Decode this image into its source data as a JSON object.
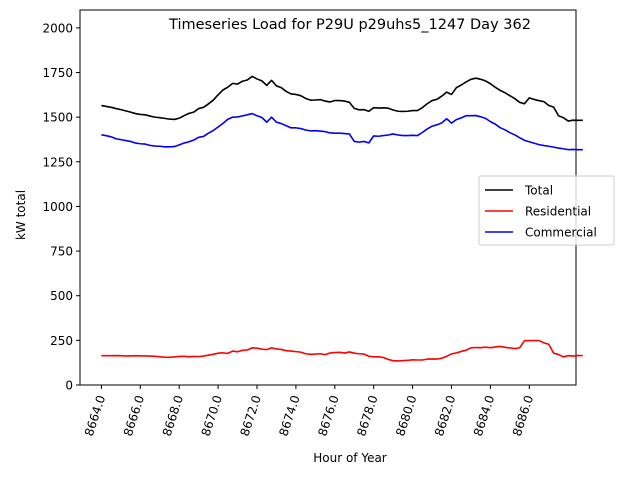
{
  "chart_data": {
    "type": "line",
    "title": "Timeseries Load for P29U p29uhs5_1247  Day 362",
    "xlabel": "Hour of Year",
    "ylabel": "kW total",
    "xlim": [
      8662.9,
      8688.4
    ],
    "ylim": [
      0,
      2100
    ],
    "x_ticks": [
      8664,
      8666,
      8668,
      8670,
      8672,
      8674,
      8676,
      8678,
      8680,
      8682,
      8684,
      8686
    ],
    "x_tick_labels": [
      "8664.0",
      "8666.0",
      "8668.0",
      "8670.0",
      "8672.0",
      "8674.0",
      "8676.0",
      "8678.0",
      "8680.0",
      "8682.0",
      "8684.0",
      "8686.0"
    ],
    "y_ticks": [
      0,
      250,
      500,
      750,
      1000,
      1250,
      1500,
      1750,
      2000
    ],
    "y_tick_labels": [
      "0",
      "250",
      "500",
      "750",
      "1000",
      "1250",
      "1500",
      "1750",
      "2000"
    ],
    "x_start": 8664.0,
    "x_step": 0.25,
    "legend_position": "center-right",
    "grid": false,
    "series": [
      {
        "name": "Total",
        "color": "#000000",
        "values": [
          1565,
          1560,
          1555,
          1548,
          1542,
          1535,
          1528,
          1520,
          1515,
          1513,
          1506,
          1500,
          1497,
          1493,
          1489,
          1487,
          1494,
          1508,
          1521,
          1528,
          1548,
          1555,
          1574,
          1595,
          1625,
          1652,
          1668,
          1689,
          1685,
          1701,
          1708,
          1728,
          1714,
          1703,
          1678,
          1706,
          1675,
          1665,
          1644,
          1630,
          1627,
          1620,
          1605,
          1595,
          1596,
          1598,
          1590,
          1585,
          1593,
          1593,
          1590,
          1583,
          1549,
          1541,
          1542,
          1533,
          1553,
          1551,
          1552,
          1550,
          1540,
          1533,
          1532,
          1533,
          1537,
          1537,
          1553,
          1575,
          1593,
          1600,
          1618,
          1640,
          1627,
          1665,
          1680,
          1697,
          1712,
          1718,
          1712,
          1703,
          1687,
          1667,
          1650,
          1637,
          1620,
          1604,
          1583,
          1575,
          1608,
          1599,
          1592,
          1587,
          1565,
          1556,
          1508,
          1497,
          1478,
          1483,
          1482,
          1482
        ]
      },
      {
        "name": "Residential",
        "color": "#ff0000",
        "values": [
          164,
          164,
          164,
          165,
          164,
          163,
          163,
          164,
          163,
          163,
          162,
          161,
          158,
          156,
          155,
          157,
          160,
          161,
          158,
          160,
          159,
          162,
          167,
          172,
          178,
          180,
          177,
          190,
          186,
          194,
          196,
          208,
          206,
          201,
          198,
          208,
          202,
          199,
          192,
          190,
          187,
          184,
          175,
          172,
          173,
          175,
          170,
          179,
          182,
          183,
          179,
          185,
          178,
          175,
          173,
          161,
          158,
          158,
          154,
          143,
          136,
          135,
          136,
          138,
          141,
          140,
          140,
          145,
          146,
          145,
          150,
          160,
          174,
          180,
          188,
          195,
          208,
          210,
          209,
          212,
          209,
          213,
          216,
          211,
          208,
          204,
          208,
          248,
          249,
          249,
          249,
          236,
          228,
          178,
          171,
          157,
          164,
          162,
          165,
          165
        ]
      },
      {
        "name": "Commercial",
        "color": "#0000ff",
        "values": [
          1401,
          1396,
          1390,
          1379,
          1374,
          1369,
          1364,
          1355,
          1351,
          1349,
          1342,
          1338,
          1337,
          1334,
          1334,
          1335,
          1345,
          1355,
          1362,
          1372,
          1387,
          1392,
          1410,
          1425,
          1445,
          1465,
          1488,
          1500,
          1501,
          1507,
          1513,
          1520,
          1508,
          1498,
          1472,
          1500,
          1472,
          1464,
          1452,
          1440,
          1440,
          1436,
          1428,
          1423,
          1424,
          1422,
          1419,
          1412,
          1410,
          1410,
          1408,
          1406,
          1364,
          1360,
          1364,
          1356,
          1395,
          1393,
          1397,
          1400,
          1406,
          1400,
          1397,
          1397,
          1398,
          1397,
          1414,
          1434,
          1449,
          1457,
          1468,
          1491,
          1467,
          1486,
          1496,
          1508,
          1508,
          1509,
          1502,
          1493,
          1475,
          1461,
          1441,
          1429,
          1413,
          1401,
          1385,
          1370,
          1362,
          1354,
          1346,
          1341,
          1337,
          1332,
          1327,
          1323,
          1318,
          1319,
          1318,
          1318
        ]
      }
    ]
  }
}
